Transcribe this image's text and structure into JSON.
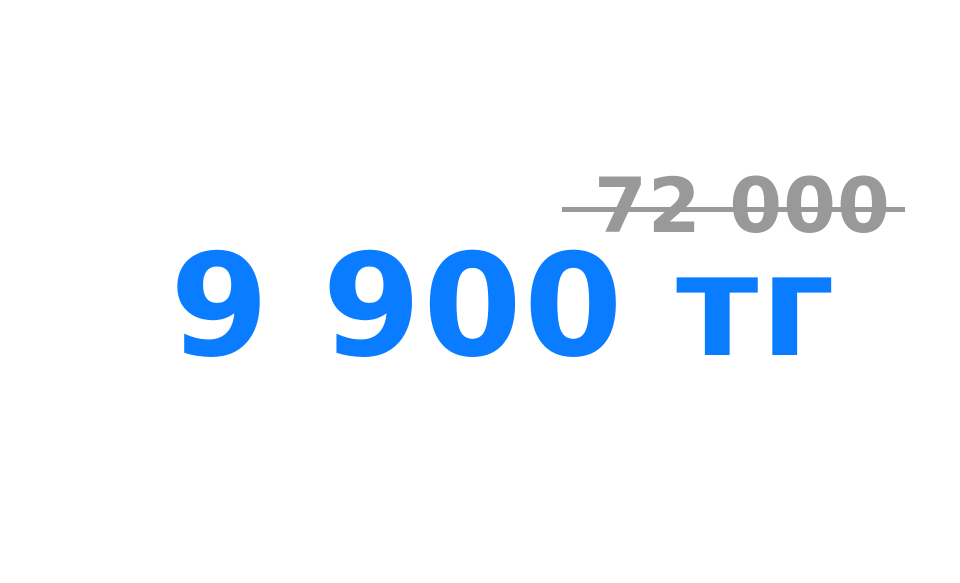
{
  "price": {
    "old_value": "72 000",
    "new_value": "9 900 тг"
  },
  "colors": {
    "old_price": "#999999",
    "strike": "#999999",
    "new_price": "#0a7cff",
    "background": "#ffffff"
  }
}
